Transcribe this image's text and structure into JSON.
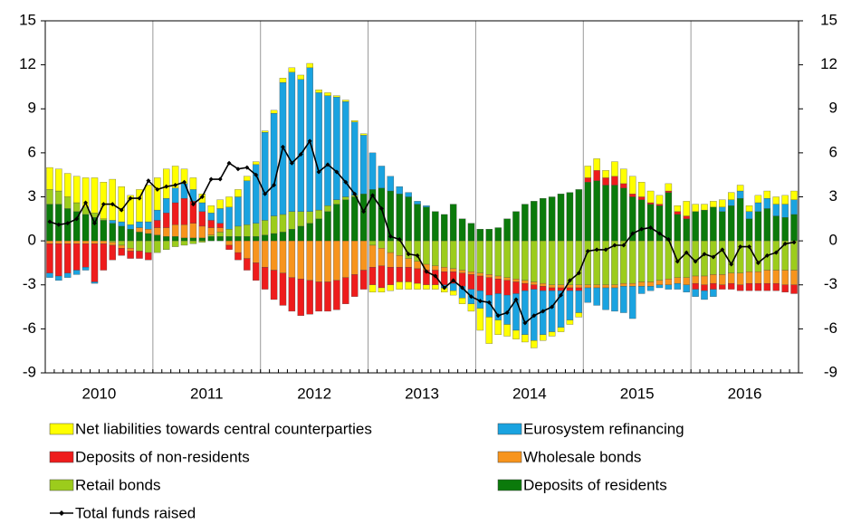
{
  "chart_data": {
    "type": "bar",
    "stacked": true,
    "categories": [
      null,
      null,
      null,
      null,
      null,
      null,
      "2010",
      null,
      null,
      null,
      null,
      null,
      null,
      null,
      null,
      null,
      null,
      null,
      "2011",
      null,
      null,
      null,
      null,
      null,
      null,
      null,
      null,
      null,
      null,
      null,
      "2012",
      null,
      null,
      null,
      null,
      null,
      null,
      null,
      null,
      null,
      null,
      null,
      "2013",
      null,
      null,
      null,
      null,
      null,
      null,
      null,
      null,
      null,
      null,
      null,
      "2014",
      null,
      null,
      null,
      null,
      null,
      null,
      null,
      null,
      null,
      null,
      null,
      "2015",
      null,
      null,
      null,
      null,
      null,
      null,
      null,
      null,
      null,
      null,
      null,
      "2016",
      null,
      null,
      null,
      null,
      null
    ],
    "ylim": [
      -9,
      15
    ],
    "yticks": [
      -9,
      -6,
      -3,
      0,
      3,
      6,
      9,
      12,
      15
    ],
    "year_grid": true,
    "series": [
      {
        "name": "Net liabilities towards central counterparties",
        "color": "#ffff00",
        "values": [
          1.5,
          1.5,
          1.6,
          1.8,
          2.0,
          2.4,
          2.5,
          2.8,
          2.4,
          2.0,
          2.2,
          2.5,
          2.2,
          2.0,
          1.5,
          1.0,
          0.8,
          0.6,
          0.5,
          0.6,
          0.7,
          0.5,
          0.3,
          0.2,
          0.1,
          0.2,
          0.3,
          0.3,
          0.3,
          0.3,
          0.2,
          0.2,
          0.1,
          0.1,
          0.1,
          0.1,
          -0.5,
          -0.3,
          -0.4,
          -0.5,
          -0.5,
          -0.4,
          -0.3,
          -0.3,
          -0.3,
          -0.3,
          -0.4,
          -0.5,
          -1.5,
          -1.8,
          -1.0,
          -0.8,
          -0.6,
          -0.5,
          -0.5,
          -0.4,
          -0.3,
          -0.3,
          -0.3,
          -0.3,
          0.8,
          0.8,
          0.5,
          1.0,
          1.0,
          1.2,
          1.0,
          0.8,
          0.6,
          0.5,
          0.4,
          1.0,
          0.5,
          0.4,
          0.4,
          0.5,
          0.5,
          0.4,
          0.4,
          0.5,
          0.5,
          0.5,
          0.6,
          0.6
        ]
      },
      {
        "name": "Eurosystem refinancing",
        "color": "#1aa3e0",
        "values": [
          -0.3,
          -0.3,
          -0.3,
          -0.3,
          -0.2,
          -0.1,
          0.0,
          0.2,
          0.3,
          0.3,
          0.4,
          0.5,
          0.7,
          1.0,
          1.0,
          1.0,
          0.8,
          0.6,
          0.5,
          1.0,
          1.5,
          2.0,
          3.0,
          4.0,
          6.0,
          7.0,
          9.0,
          9.5,
          9.0,
          9.8,
          8.0,
          7.5,
          7.0,
          6.5,
          5.0,
          4.0,
          2.5,
          1.5,
          1.0,
          0.5,
          0.3,
          0.2,
          0.1,
          0.0,
          -0.2,
          -0.5,
          -0.8,
          -1.0,
          -1.2,
          -1.5,
          -1.8,
          -2.0,
          -2.5,
          -3.0,
          -3.5,
          -3.0,
          -2.8,
          -2.5,
          -2.0,
          -1.5,
          -1.0,
          -1.2,
          -1.5,
          -1.6,
          -1.8,
          -2.2,
          -0.5,
          -0.3,
          -0.2,
          -0.3,
          -0.4,
          -0.5,
          -0.5,
          -0.6,
          -0.5,
          0.3,
          0.4,
          0.5,
          0.5,
          0.6,
          0.7,
          0.8,
          0.9,
          1.0
        ]
      },
      {
        "name": "Deposits of non-residents",
        "color": "#ee1c1c",
        "values": [
          -2.0,
          -2.2,
          -2.0,
          -1.8,
          -1.6,
          -2.6,
          -1.8,
          -1.0,
          -0.5,
          -0.5,
          -0.5,
          -0.5,
          0.5,
          1.0,
          1.5,
          1.8,
          1.5,
          1.0,
          0.5,
          0.3,
          -0.3,
          -0.5,
          -0.8,
          -1.2,
          -1.5,
          -2.0,
          -2.2,
          -2.3,
          -2.5,
          -2.3,
          -2.0,
          -2.0,
          -2.0,
          -1.8,
          -1.5,
          -1.3,
          -1.2,
          -1.5,
          -1.2,
          -1.0,
          -1.0,
          -1.0,
          -1.0,
          -1.0,
          -0.9,
          -0.8,
          -0.9,
          -1.0,
          -1.0,
          -1.2,
          -1.0,
          -1.0,
          -0.8,
          -0.5,
          -0.3,
          -0.3,
          -0.2,
          -0.2,
          -0.2,
          -0.2,
          0.3,
          0.7,
          0.5,
          0.6,
          0.3,
          0.2,
          0.2,
          0.1,
          0.1,
          0.1,
          0.2,
          0.2,
          -0.4,
          -0.4,
          -0.4,
          -0.3,
          -0.4,
          -0.4,
          -0.5,
          -0.5,
          -0.5,
          -0.5,
          -0.5,
          -0.6
        ]
      },
      {
        "name": "Wholesale bonds",
        "color": "#f7941d",
        "values": [
          -0.2,
          -0.2,
          -0.2,
          -0.2,
          -0.2,
          -0.2,
          -0.2,
          -0.2,
          -0.2,
          -0.2,
          0.3,
          0.3,
          0.5,
          0.6,
          0.8,
          0.9,
          1.0,
          0.8,
          0.5,
          0.3,
          -0.3,
          -0.8,
          -1.2,
          -1.5,
          -1.8,
          -2.0,
          -2.2,
          -2.5,
          -2.6,
          -2.7,
          -2.8,
          -2.8,
          -2.7,
          -2.5,
          -2.3,
          -2.0,
          -1.5,
          -1.2,
          -1.0,
          -0.8,
          -0.6,
          -0.5,
          -0.4,
          -0.3,
          -0.3,
          -0.2,
          -0.2,
          -0.2,
          -0.2,
          -0.2,
          -0.2,
          -0.2,
          -0.2,
          -0.2,
          -0.2,
          -0.2,
          -0.2,
          -0.2,
          -0.2,
          -0.2,
          -0.2,
          -0.2,
          -0.2,
          -0.2,
          -0.2,
          -0.2,
          -0.3,
          -0.3,
          -0.3,
          -0.4,
          -0.4,
          -0.5,
          -0.5,
          -0.6,
          -0.6,
          -0.7,
          -0.7,
          -0.8,
          -0.8,
          -0.8,
          -0.9,
          -0.9,
          -1.0,
          -1.0
        ]
      },
      {
        "name": "Retail bonds",
        "color": "#9ccc1c",
        "values": [
          1.0,
          0.9,
          0.8,
          0.6,
          0.5,
          0.3,
          0.1,
          -0.1,
          -0.3,
          -0.5,
          -0.7,
          -0.8,
          -0.8,
          -0.6,
          -0.4,
          -0.3,
          -0.2,
          -0.1,
          0.1,
          0.3,
          0.5,
          0.7,
          0.8,
          0.9,
          1.0,
          1.2,
          1.2,
          1.2,
          1.0,
          0.8,
          0.6,
          0.4,
          0.3,
          0.2,
          0.1,
          0.0,
          -0.3,
          -0.5,
          -0.8,
          -1.0,
          -1.2,
          -1.4,
          -1.6,
          -1.7,
          -1.8,
          -1.9,
          -2.0,
          -2.1,
          -2.2,
          -2.3,
          -2.4,
          -2.5,
          -2.6,
          -2.7,
          -2.8,
          -2.9,
          -3.0,
          -3.0,
          -3.0,
          -3.0,
          -3.0,
          -3.0,
          -3.0,
          -3.0,
          -2.9,
          -2.9,
          -2.8,
          -2.8,
          -2.7,
          -2.6,
          -2.5,
          -2.5,
          -2.4,
          -2.4,
          -2.3,
          -2.3,
          -2.2,
          -2.2,
          -2.1,
          -2.1,
          -2.0,
          -2.0,
          -2.0,
          -2.0
        ]
      },
      {
        "name": "Deposits of residents",
        "color": "#0b7a0b",
        "values": [
          2.5,
          2.5,
          2.2,
          2.0,
          1.8,
          1.6,
          1.4,
          1.2,
          1.0,
          0.8,
          0.6,
          0.5,
          0.4,
          0.3,
          0.3,
          0.2,
          0.2,
          0.2,
          0.3,
          0.3,
          0.3,
          0.3,
          0.3,
          0.3,
          0.4,
          0.5,
          0.6,
          0.8,
          1.0,
          1.2,
          1.5,
          2.0,
          2.5,
          2.8,
          3.0,
          3.2,
          3.5,
          3.6,
          3.4,
          3.2,
          3.0,
          2.5,
          2.3,
          2.0,
          1.8,
          2.5,
          1.5,
          1.2,
          0.8,
          0.8,
          0.9,
          1.5,
          2.0,
          2.5,
          2.7,
          2.9,
          3.0,
          3.2,
          3.3,
          3.5,
          4.0,
          4.1,
          3.8,
          3.8,
          3.6,
          3.0,
          2.8,
          2.5,
          2.4,
          3.3,
          1.8,
          1.5,
          2.0,
          2.1,
          2.3,
          2.0,
          2.4,
          2.9,
          1.5,
          2.0,
          2.2,
          1.7,
          1.6,
          1.8
        ]
      },
      {
        "name": "Total funds raised",
        "type": "line",
        "color": "#000000",
        "values": [
          1.3,
          1.1,
          1.2,
          1.5,
          2.6,
          1.2,
          2.5,
          2.5,
          2.1,
          2.9,
          2.9,
          4.1,
          3.5,
          3.7,
          3.8,
          4.0,
          2.5,
          3.0,
          4.2,
          4.2,
          5.3,
          4.9,
          5.0,
          4.5,
          3.2,
          3.8,
          6.4,
          5.3,
          5.9,
          6.8,
          4.7,
          5.2,
          4.7,
          4.0,
          3.2,
          2.0,
          3.1,
          2.2,
          0.3,
          0.1,
          -0.9,
          -1.0,
          -2.1,
          -2.4,
          -3.2,
          -2.7,
          -3.2,
          -3.8,
          -4.1,
          -4.2,
          -5.1,
          -4.9,
          -4.0,
          -5.6,
          -5.1,
          -4.8,
          -4.5,
          -3.7,
          -2.7,
          -2.2,
          -0.7,
          -0.6,
          -0.6,
          -0.3,
          -0.3,
          0.5,
          0.8,
          0.9,
          0.5,
          0.1,
          -1.4,
          -0.8,
          -1.4,
          -0.9,
          -1.1,
          -0.6,
          -1.6,
          -0.4,
          -0.4,
          -1.5,
          -1.0,
          -0.8,
          -0.2,
          -0.1
        ]
      }
    ]
  }
}
